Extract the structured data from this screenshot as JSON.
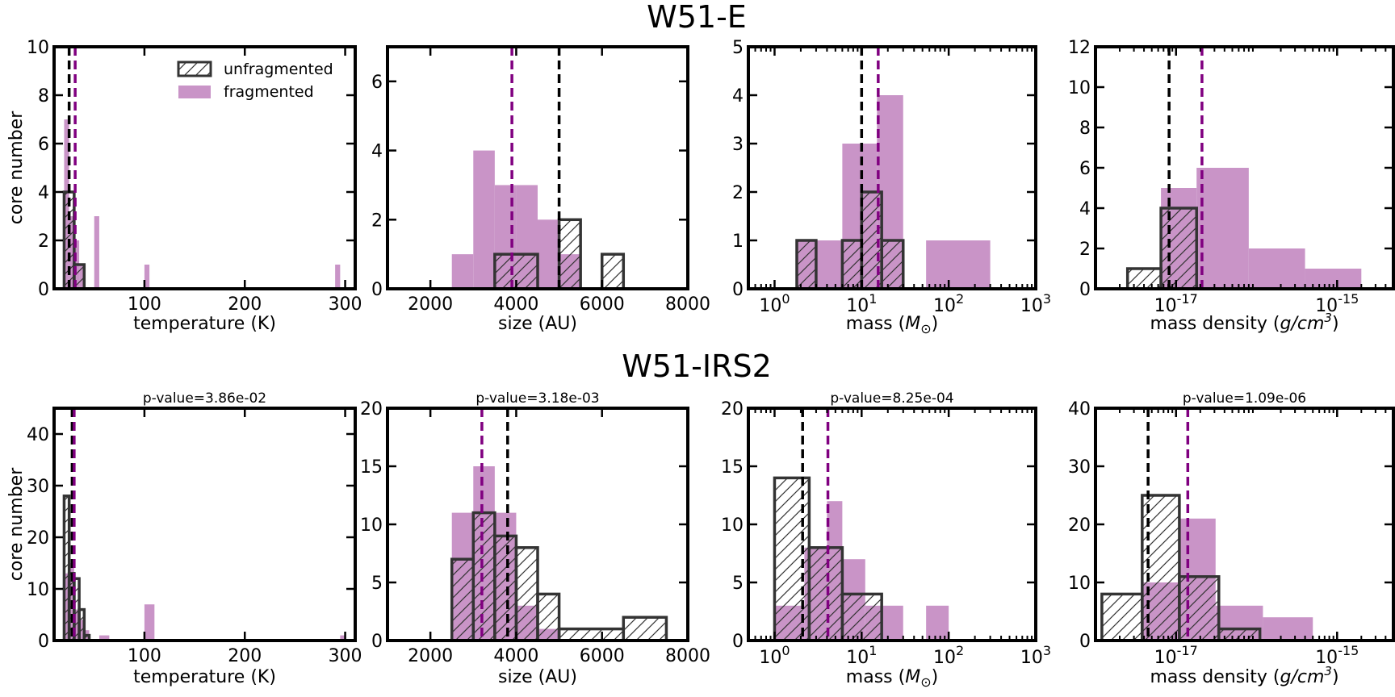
{
  "rows": [
    {
      "title": "W51-E"
    },
    {
      "title": "W51-IRS2"
    }
  ],
  "legend": {
    "unfragmented": "unfragmented",
    "fragmented": "fragmented",
    "placement": "upper-right of first panel"
  },
  "colors": {
    "fragmented_fill": "#c994c7",
    "unfragmented_edge": "#333333",
    "median_unfragmented": "#000000",
    "median_fragmented": "#800080"
  },
  "chart_data": [
    {
      "type": "bar",
      "row": 0,
      "col": 0,
      "xlabel": "temperature (K)",
      "ylabel": "core number",
      "pvalue": "",
      "xscale": "linear",
      "xlim": [
        10,
        310
      ],
      "ylim": [
        0,
        10
      ],
      "xticks": [
        100,
        200,
        300
      ],
      "xtick_labels": [
        "100",
        "200",
        "300"
      ],
      "yticks": [
        0,
        2,
        4,
        6,
        8,
        10
      ],
      "ytick_labels": [
        "0",
        "2",
        "4",
        "6",
        "8",
        "10"
      ],
      "fragmented": {
        "edges": [
          20,
          25,
          30,
          35,
          40,
          45,
          50,
          55,
          60,
          95,
          100,
          105,
          110,
          290,
          295,
          300
        ],
        "bins": [
          [
            20,
            25,
            7
          ],
          [
            25,
            30,
            3
          ],
          [
            30,
            35,
            2
          ],
          [
            35,
            40,
            1
          ],
          [
            50,
            55,
            3
          ],
          [
            100,
            105,
            1
          ],
          [
            290,
            295,
            1
          ]
        ]
      },
      "unfragmented": {
        "bins": [
          [
            20,
            30,
            4
          ],
          [
            30,
            40,
            1
          ]
        ]
      },
      "median_unfragmented": 25,
      "median_fragmented": 31
    },
    {
      "type": "bar",
      "row": 0,
      "col": 1,
      "xlabel": "size (AU)",
      "ylabel": "",
      "pvalue": "",
      "xscale": "linear",
      "xlim": [
        1000,
        8000
      ],
      "ylim": [
        0,
        7
      ],
      "xticks": [
        2000,
        4000,
        6000,
        8000
      ],
      "xtick_labels": [
        "2000",
        "4000",
        "6000",
        "8000"
      ],
      "yticks": [
        0,
        2,
        4,
        6
      ],
      "ytick_labels": [
        "0",
        "2",
        "4",
        "6"
      ],
      "fragmented": {
        "bins": [
          [
            2500,
            3000,
            1
          ],
          [
            3000,
            3500,
            4
          ],
          [
            3500,
            4000,
            3
          ],
          [
            4000,
            4500,
            3
          ],
          [
            4500,
            5000,
            2
          ],
          [
            5000,
            5500,
            1
          ]
        ]
      },
      "unfragmented": {
        "bins": [
          [
            3500,
            4500,
            1
          ],
          [
            5000,
            5500,
            2
          ],
          [
            6000,
            6500,
            1
          ]
        ]
      },
      "median_unfragmented": 5000,
      "median_fragmented": 3900
    },
    {
      "type": "bar",
      "row": 0,
      "col": 2,
      "xlabel": "mass",
      "xlabel_unit": "M",
      "xlabel_sub": "⊙",
      "ylabel": "",
      "pvalue": "",
      "xscale": "log",
      "xlim": [
        0.5,
        1000
      ],
      "ylim": [
        0,
        5
      ],
      "xticks": [
        1,
        10,
        100,
        1000
      ],
      "xtick_labels": [
        "10^0",
        "10^1",
        "10^2",
        "10^3"
      ],
      "yticks": [
        0,
        1,
        2,
        3,
        4,
        5
      ],
      "ytick_labels": [
        "0",
        "1",
        "2",
        "3",
        "4",
        "5"
      ],
      "fragmented": {
        "bins": [
          [
            1.8,
            3,
            1
          ],
          [
            3,
            6,
            1
          ],
          [
            6,
            15,
            3
          ],
          [
            15,
            30,
            4
          ],
          [
            55,
            300,
            1
          ]
        ]
      },
      "unfragmented": {
        "bins": [
          [
            1.8,
            3,
            1
          ],
          [
            6,
            10,
            1
          ],
          [
            10,
            17,
            2
          ],
          [
            17,
            30,
            1
          ]
        ]
      },
      "median_unfragmented": 10,
      "median_fragmented": 15.5
    },
    {
      "type": "bar",
      "row": 0,
      "col": 3,
      "xlabel": "mass density (g/cm^3)",
      "ylabel": "",
      "pvalue": "",
      "xscale": "log",
      "xlim": [
        1e-18,
        5e-15
      ],
      "ylim": [
        0,
        12
      ],
      "xticks": [
        1e-17,
        1e-15
      ],
      "xtick_labels": [
        "10^-17",
        "10^-15"
      ],
      "yticks": [
        0,
        2,
        4,
        6,
        8,
        10,
        12
      ],
      "ytick_labels": [
        "0",
        "2",
        "4",
        "6",
        "8",
        "10",
        "12"
      ],
      "fragmented": {
        "bins": [
          [
            6.5e-18,
            1.8e-17,
            5
          ],
          [
            1.8e-17,
            8e-17,
            6
          ],
          [
            8e-17,
            4e-16,
            2
          ],
          [
            4e-16,
            2e-15,
            1
          ]
        ]
      },
      "unfragmented": {
        "bins": [
          [
            2.5e-18,
            6.5e-18,
            1
          ],
          [
            6.5e-18,
            1.8e-17,
            4
          ]
        ]
      },
      "median_unfragmented": 8.2e-18,
      "median_fragmented": 2.1e-17
    },
    {
      "type": "bar",
      "row": 1,
      "col": 0,
      "xlabel": "temperature (K)",
      "ylabel": "core number",
      "pvalue": "p-value=3.86e-02",
      "xscale": "linear",
      "xlim": [
        10,
        310
      ],
      "ylim": [
        0,
        45
      ],
      "xticks": [
        100,
        200,
        300
      ],
      "xtick_labels": [
        "100",
        "200",
        "300"
      ],
      "yticks": [
        0,
        10,
        20,
        30,
        40
      ],
      "ytick_labels": [
        "0",
        "10",
        "20",
        "30",
        "40"
      ],
      "fragmented": {
        "bins": [
          [
            20,
            25,
            13
          ],
          [
            25,
            30,
            15
          ],
          [
            30,
            35,
            6
          ],
          [
            35,
            40,
            4
          ],
          [
            40,
            45,
            2
          ],
          [
            55,
            65,
            1
          ],
          [
            100,
            110,
            7
          ],
          [
            295,
            300,
            1
          ]
        ]
      },
      "unfragmented": {
        "bins": [
          [
            20,
            25,
            28
          ],
          [
            25,
            30,
            13
          ],
          [
            30,
            35,
            12
          ],
          [
            35,
            40,
            6
          ],
          [
            40,
            45,
            1
          ]
        ]
      },
      "median_unfragmented": 28,
      "median_fragmented": 30
    },
    {
      "type": "bar",
      "row": 1,
      "col": 1,
      "xlabel": "size (AU)",
      "ylabel": "",
      "pvalue": "p-value=3.18e-03",
      "xscale": "linear",
      "xlim": [
        1000,
        8000
      ],
      "ylim": [
        0,
        20
      ],
      "xticks": [
        2000,
        4000,
        6000,
        8000
      ],
      "xtick_labels": [
        "2000",
        "4000",
        "6000",
        "8000"
      ],
      "yticks": [
        0,
        5,
        10,
        15,
        20
      ],
      "ytick_labels": [
        "0",
        "5",
        "10",
        "15",
        "20"
      ],
      "fragmented": {
        "bins": [
          [
            2500,
            3000,
            11
          ],
          [
            3000,
            3500,
            15
          ],
          [
            3500,
            4000,
            11
          ],
          [
            4000,
            4500,
            3
          ],
          [
            4500,
            5000,
            1
          ]
        ]
      },
      "unfragmented": {
        "bins": [
          [
            2500,
            3000,
            7
          ],
          [
            3000,
            3500,
            11
          ],
          [
            3500,
            4000,
            9
          ],
          [
            4000,
            4500,
            8
          ],
          [
            4500,
            5000,
            4
          ],
          [
            5000,
            6500,
            1
          ],
          [
            6500,
            7500,
            2
          ]
        ]
      },
      "median_unfragmented": 3800,
      "median_fragmented": 3200
    },
    {
      "type": "bar",
      "row": 1,
      "col": 2,
      "xlabel": "mass",
      "xlabel_unit": "M",
      "xlabel_sub": "⊙",
      "ylabel": "",
      "pvalue": "p-value=8.25e-04",
      "xscale": "log",
      "xlim": [
        0.5,
        1000
      ],
      "ylim": [
        0,
        20
      ],
      "xticks": [
        1,
        10,
        100,
        1000
      ],
      "xtick_labels": [
        "10^0",
        "10^1",
        "10^2",
        "10^3"
      ],
      "yticks": [
        0,
        5,
        10,
        15,
        20
      ],
      "ytick_labels": [
        "0",
        "5",
        "10",
        "15",
        "20"
      ],
      "fragmented": {
        "bins": [
          [
            1,
            2.2,
            3
          ],
          [
            2.2,
            4,
            8
          ],
          [
            4,
            6,
            12
          ],
          [
            6,
            11,
            7
          ],
          [
            11,
            30,
            3
          ],
          [
            55,
            100,
            3
          ]
        ]
      },
      "unfragmented": {
        "bins": [
          [
            1,
            2.5,
            14
          ],
          [
            2.5,
            6,
            8
          ],
          [
            6,
            17,
            4
          ]
        ]
      },
      "median_unfragmented": 2.1,
      "median_fragmented": 4.1
    },
    {
      "type": "bar",
      "row": 1,
      "col": 3,
      "xlabel": "mass density (g/cm^3)",
      "ylabel": "",
      "pvalue": "p-value=1.09e-06",
      "xscale": "log",
      "xlim": [
        1e-18,
        5e-15
      ],
      "ylim": [
        0,
        40
      ],
      "xticks": [
        1e-17,
        1e-15
      ],
      "xtick_labels": [
        "10^-17",
        "10^-15"
      ],
      "yticks": [
        0,
        10,
        20,
        30,
        40
      ],
      "ytick_labels": [
        "0",
        "10",
        "20",
        "30",
        "40"
      ],
      "fragmented": {
        "bins": [
          [
            3.8e-18,
            1.1e-17,
            10
          ],
          [
            1.1e-17,
            3.1e-17,
            21
          ],
          [
            3.1e-17,
            1.2e-16,
            6
          ],
          [
            1.2e-16,
            5e-16,
            4
          ]
        ]
      },
      "unfragmented": {
        "bins": [
          [
            1.2e-18,
            3.8e-18,
            8
          ],
          [
            3.8e-18,
            1.1e-17,
            25
          ],
          [
            1.1e-17,
            3.4e-17,
            11
          ],
          [
            3.4e-17,
            1.1e-16,
            2
          ]
        ]
      },
      "median_unfragmented": 4.5e-18,
      "median_fragmented": 1.4e-17
    }
  ]
}
